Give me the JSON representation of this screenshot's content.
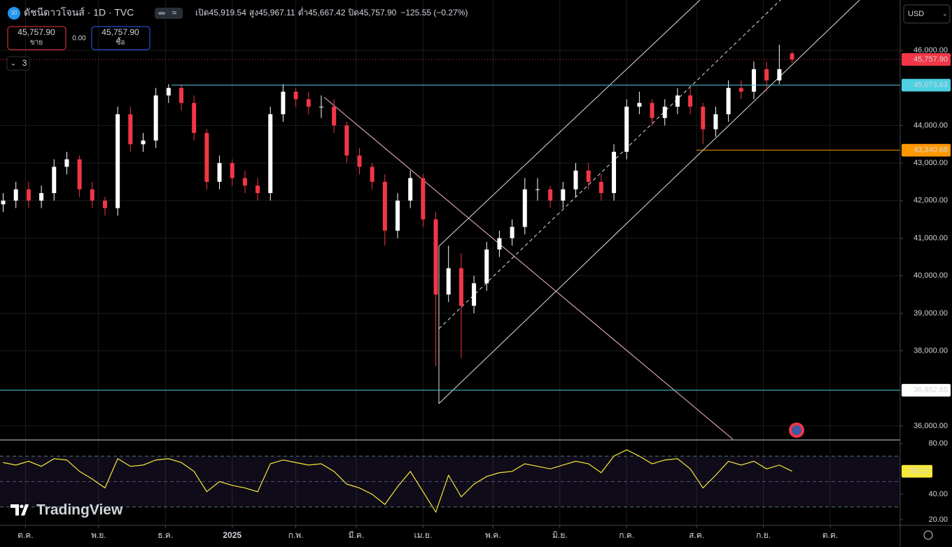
{
  "header": {
    "logo": "30",
    "symbol": "ดัชนีดาวโจนส์ · 1D · TVC",
    "ohlc": [
      {
        "label": "เปิด",
        "value": "45,919.54"
      },
      {
        "label": "สูง",
        "value": "45,967.11"
      },
      {
        "label": "ต่ำ",
        "value": "45,667.42"
      },
      {
        "label": "ปิด",
        "value": "45,757.90"
      }
    ],
    "change": "−125.55 (−0.27%)"
  },
  "trade": {
    "sell_price": "45,757.90",
    "sell_label": "ขาย",
    "spread": "0.00",
    "buy_price": "45,757.90",
    "buy_label": "ซื้อ"
  },
  "indicators_count": "3",
  "currency": "USD",
  "brand": "TradingView",
  "chart_data": [
    {
      "type": "candlestick",
      "up_color": "#ffffff",
      "down_color": "#f23645",
      "grid": true,
      "x": [
        1,
        5,
        9,
        13,
        17,
        21,
        25,
        29,
        33,
        37,
        41,
        45,
        49,
        53,
        57,
        61,
        65,
        69,
        73,
        77,
        81,
        85,
        89,
        93,
        97,
        101,
        105,
        109,
        113,
        117,
        121,
        125,
        129,
        133,
        137,
        141,
        145,
        149,
        153,
        157,
        161,
        165,
        169,
        173,
        177,
        181,
        185,
        189,
        193,
        197,
        201,
        205,
        209,
        213,
        217,
        221,
        225,
        229,
        233,
        237,
        241,
        245,
        249
      ],
      "open": [
        41900,
        42000,
        42300,
        42000,
        42200,
        42900,
        43100,
        42300,
        42000,
        41800,
        44300,
        43500,
        43600,
        44800,
        45000,
        44600,
        43800,
        42500,
        43000,
        42600,
        42400,
        42200,
        44300,
        44900,
        44700,
        44500,
        44500,
        44000,
        43200,
        42900,
        42500,
        41200,
        42000,
        42600,
        41500,
        39500,
        40200,
        39200,
        39800,
        40700,
        41000,
        41300,
        42300,
        42300,
        42000,
        42300,
        42800,
        42500,
        42200,
        43300,
        44500,
        44600,
        44200,
        44500,
        44800,
        44500,
        43900,
        44300,
        45000,
        44900,
        45500,
        45200,
        45919.54
      ],
      "high": [
        42200,
        42500,
        42500,
        42400,
        43100,
        43300,
        43200,
        42500,
        42100,
        44500,
        44500,
        43800,
        45000,
        45100,
        45100,
        44800,
        43900,
        43200,
        43100,
        42800,
        42600,
        44500,
        45100,
        45000,
        44900,
        44800,
        44700,
        44100,
        43400,
        43000,
        42700,
        42200,
        42800,
        42700,
        41700,
        40800,
        40600,
        40000,
        40900,
        41200,
        41500,
        42600,
        42600,
        42400,
        42500,
        43000,
        43000,
        42700,
        43500,
        44700,
        44900,
        44700,
        44700,
        45000,
        45000,
        44600,
        44500,
        45200,
        45200,
        45700,
        45700,
        46150,
        45967.11
      ],
      "low": [
        41700,
        41800,
        41800,
        41800,
        42000,
        42700,
        42100,
        41800,
        41600,
        41600,
        43300,
        43300,
        43400,
        44600,
        44400,
        43600,
        42300,
        42300,
        42400,
        42200,
        42000,
        42000,
        44100,
        44500,
        44300,
        44200,
        43800,
        43000,
        42700,
        42300,
        40800,
        41000,
        41800,
        41300,
        37600,
        39300,
        37800,
        39000,
        39600,
        40500,
        40800,
        41100,
        42000,
        41800,
        41800,
        42100,
        42300,
        42000,
        42000,
        43100,
        44300,
        44000,
        44000,
        44300,
        44300,
        43500,
        43700,
        44100,
        44700,
        44700,
        44900,
        45100,
        45667.42
      ],
      "close": [
        42000,
        42300,
        42000,
        42200,
        42900,
        43100,
        42300,
        42000,
        41800,
        44300,
        43500,
        43600,
        44800,
        45000,
        44600,
        43800,
        42500,
        43000,
        42600,
        42400,
        42200,
        44300,
        44900,
        44700,
        44500,
        44500,
        44000,
        43200,
        42900,
        42500,
        41200,
        42000,
        42600,
        41500,
        39500,
        40200,
        39200,
        39800,
        40700,
        41000,
        41300,
        42300,
        42300,
        42000,
        42300,
        42800,
        42500,
        42200,
        43300,
        44500,
        44600,
        44200,
        44500,
        44800,
        44500,
        43900,
        44300,
        45000,
        44900,
        45500,
        45200,
        45500,
        45757.9
      ],
      "xlim": [
        0,
        283
      ],
      "xticks": [
        {
          "value": 8,
          "label": "ต.ค."
        },
        {
          "value": 31,
          "label": "พ.ย."
        },
        {
          "value": 52,
          "label": "ธ.ค."
        },
        {
          "value": 73,
          "label": "2025"
        },
        {
          "value": 93,
          "label": "ก.พ."
        },
        {
          "value": 112,
          "label": "มี.ค."
        },
        {
          "value": 133,
          "label": "เม.ย."
        },
        {
          "value": 155,
          "label": "พ.ค."
        },
        {
          "value": 176,
          "label": "มิ.ย."
        },
        {
          "value": 197,
          "label": "ก.ค."
        },
        {
          "value": 219,
          "label": "ส.ค."
        },
        {
          "value": 240,
          "label": "ก.ย."
        },
        {
          "value": 261,
          "label": "ต.ค."
        }
      ],
      "ylim": [
        35646,
        47341
      ],
      "yticks": [
        {
          "value": 46000,
          "label": "46,000.00"
        },
        {
          "value": 44000,
          "label": "44,000.00"
        },
        {
          "value": 43000,
          "label": "43,000.00"
        },
        {
          "value": 42000,
          "label": "42,000.00"
        },
        {
          "value": 41000,
          "label": "41,000.00"
        },
        {
          "value": 40000,
          "label": "40,000.00"
        },
        {
          "value": 39000,
          "label": "39,000.00"
        },
        {
          "value": 38000,
          "label": "38,000.00"
        },
        {
          "value": 36000,
          "label": "36,000.00"
        }
      ],
      "price_lines": [
        {
          "value": 45757.9,
          "label": "45,757.90",
          "color": "#f23645"
        },
        {
          "value": 45073.63,
          "label": "45,073.63",
          "color": "#4dd0e1"
        },
        {
          "value": 43340.68,
          "label": "43,340.68",
          "color": "#ff9800"
        },
        {
          "value": 36952.65,
          "label": "36,952.65",
          "color": "#4dd0e1"
        }
      ]
    },
    {
      "type": "line",
      "color": "#f7e83c",
      "x": [
        1,
        5,
        9,
        13,
        17,
        21,
        25,
        29,
        33,
        37,
        41,
        45,
        49,
        53,
        57,
        61,
        65,
        69,
        73,
        77,
        81,
        85,
        89,
        93,
        97,
        101,
        105,
        109,
        113,
        117,
        121,
        125,
        129,
        133,
        137,
        141,
        145,
        149,
        153,
        157,
        161,
        165,
        169,
        173,
        177,
        181,
        185,
        189,
        193,
        197,
        201,
        205,
        209,
        213,
        217,
        221,
        225,
        229,
        233,
        237,
        241,
        245,
        249
      ],
      "values": [
        65,
        63,
        66,
        62,
        68,
        67,
        58,
        52,
        45,
        68,
        62,
        63,
        67,
        68,
        65,
        58,
        42,
        50,
        47,
        45,
        42,
        64,
        67,
        65,
        63,
        64,
        58,
        48,
        45,
        40,
        32,
        46,
        58,
        42,
        26,
        55,
        38,
        48,
        54,
        57,
        58,
        64,
        62,
        60,
        63,
        66,
        64,
        57,
        70,
        75,
        70,
        64,
        67,
        68,
        60,
        45,
        55,
        66,
        63,
        66,
        60,
        63,
        58.12
      ],
      "value_labels": {
        "62": "58.12"
      },
      "xlim": [
        0,
        283
      ],
      "ylim": [
        16.1,
        82.2
      ],
      "levels": [
        70,
        50,
        30
      ],
      "yticks": [
        {
          "value": 80,
          "label": "80.00"
        },
        {
          "value": 40,
          "label": "40.00"
        },
        {
          "value": 20,
          "label": "20.00"
        }
      ]
    }
  ]
}
